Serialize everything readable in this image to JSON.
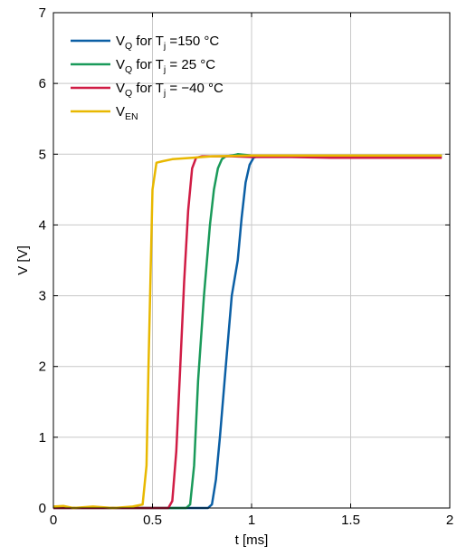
{
  "chart_data": {
    "type": "line",
    "title": "",
    "xlabel": "t [ms]",
    "ylabel": "V [V]",
    "xlim": [
      0,
      2
    ],
    "ylim": [
      0,
      7
    ],
    "xticks": [
      0,
      0.5,
      1,
      1.5,
      2
    ],
    "xtick_labels": [
      "0",
      "0.5",
      "1",
      "1.5",
      "2"
    ],
    "yticks": [
      0,
      1,
      2,
      3,
      4,
      5,
      6,
      7
    ],
    "ytick_labels": [
      "0",
      "1",
      "2",
      "3",
      "4",
      "5",
      "6",
      "7"
    ],
    "grid": true,
    "legend_position": "top-left",
    "series": [
      {
        "name": "V_Q for T_j =150 °C",
        "label_parts": {
          "main": "V",
          "sub": "Q",
          "mid": " for T",
          "sub2": "j",
          "tail": " =150 °C"
        },
        "color": "#0b5fa5",
        "x": [
          0,
          0.2,
          0.78,
          0.8,
          0.82,
          0.84,
          0.87,
          0.9,
          0.93,
          0.95,
          0.97,
          0.99,
          1.01,
          1.03,
          1.06,
          1.1,
          1.2,
          1.4,
          1.6,
          1.8,
          1.96
        ],
        "y": [
          0.0,
          0.0,
          0.0,
          0.05,
          0.4,
          1.0,
          2.0,
          3.0,
          3.5,
          4.1,
          4.6,
          4.85,
          4.95,
          4.97,
          4.97,
          4.97,
          4.97,
          4.97,
          4.96,
          4.97,
          4.97
        ]
      },
      {
        "name": "V_Q for T_j = 25 °C",
        "label_parts": {
          "main": "V",
          "sub": "Q",
          "mid": " for T",
          "sub2": "j",
          "tail": " = 25 °C"
        },
        "color": "#1a9a5a",
        "x": [
          0,
          0.2,
          0.67,
          0.69,
          0.71,
          0.73,
          0.76,
          0.79,
          0.81,
          0.83,
          0.85,
          0.87,
          0.9,
          0.93,
          1.0,
          1.2,
          1.4,
          1.6,
          1.8,
          1.96
        ],
        "y": [
          0.0,
          0.0,
          0.0,
          0.05,
          0.6,
          1.8,
          3.0,
          4.0,
          4.5,
          4.8,
          4.93,
          4.97,
          4.98,
          5.0,
          4.98,
          4.98,
          4.98,
          4.98,
          4.98,
          4.98
        ]
      },
      {
        "name": "V_Q for T_j = −40 °C",
        "label_parts": {
          "main": "V",
          "sub": "Q",
          "mid": " for T",
          "sub2": "j",
          "tail": " = −40 °C"
        },
        "color": "#d01c45",
        "x": [
          0,
          0.2,
          0.58,
          0.6,
          0.62,
          0.64,
          0.66,
          0.68,
          0.7,
          0.72,
          0.75,
          0.8,
          0.9,
          1.0,
          1.2,
          1.4,
          1.6,
          1.8,
          1.96
        ],
        "y": [
          0.0,
          0.0,
          0.0,
          0.1,
          0.8,
          2.0,
          3.2,
          4.2,
          4.8,
          4.95,
          4.97,
          4.97,
          4.97,
          4.96,
          4.96,
          4.95,
          4.95,
          4.95,
          4.95
        ]
      },
      {
        "name": "V_EN",
        "label_parts": {
          "main": "V",
          "sub": "EN",
          "mid": "",
          "sub2": "",
          "tail": ""
        },
        "color": "#e8b800",
        "x": [
          0,
          0.05,
          0.1,
          0.2,
          0.3,
          0.4,
          0.45,
          0.47,
          0.48,
          0.5,
          0.52,
          0.55,
          0.6,
          0.7,
          0.8,
          1.0,
          1.2,
          1.4,
          1.6,
          1.8,
          1.96
        ],
        "y": [
          0.02,
          0.03,
          0.0,
          0.02,
          0.0,
          0.02,
          0.05,
          0.6,
          2.0,
          4.5,
          4.88,
          4.9,
          4.93,
          4.95,
          4.97,
          4.98,
          4.98,
          4.98,
          4.98,
          4.98,
          4.98
        ]
      }
    ]
  }
}
